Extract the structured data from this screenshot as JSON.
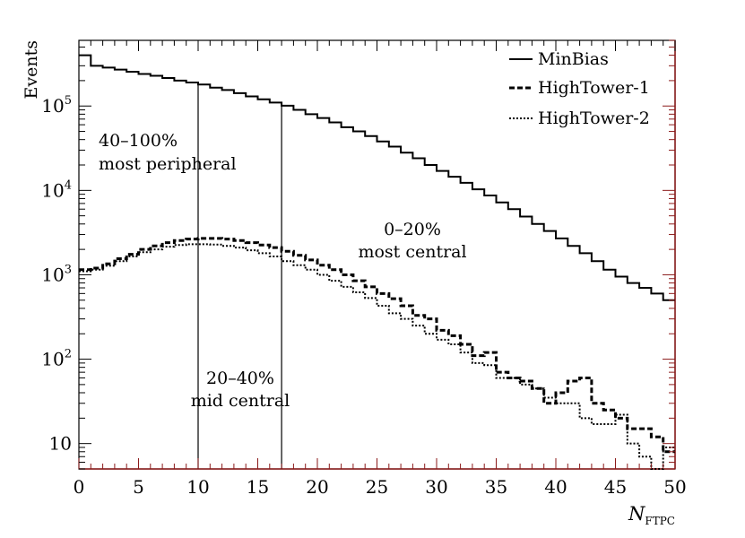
{
  "chart_data": {
    "type": "histogram",
    "title": "",
    "xlabel": "N",
    "xlabel_sub": "FTPC",
    "ylabel": "Events",
    "xlim": [
      0,
      50
    ],
    "ylim": [
      5,
      600000
    ],
    "yscale": "log",
    "bin_width": 1,
    "x_ticks": [
      "0",
      "5",
      "10",
      "15",
      "20",
      "25",
      "30",
      "35",
      "40",
      "45",
      "50"
    ],
    "y_ticks": [
      {
        "value": 10,
        "base": "10",
        "exp": ""
      },
      {
        "value": 100,
        "base": "10",
        "exp": "2"
      },
      {
        "value": 1000,
        "base": "10",
        "exp": "3"
      },
      {
        "value": 10000,
        "base": "10",
        "exp": "4"
      },
      {
        "value": 100000,
        "base": "10",
        "exp": "5"
      }
    ],
    "series": [
      {
        "name": "MinBias",
        "style": "solid",
        "values": [
          400000,
          300000,
          285000,
          270000,
          255000,
          240000,
          228000,
          215000,
          200000,
          190000,
          180000,
          165000,
          155000,
          142000,
          130000,
          120000,
          110000,
          101000,
          90000,
          80000,
          72000,
          64000,
          56000,
          50000,
          44000,
          38000,
          33000,
          28000,
          24000,
          20000,
          17000,
          14500,
          12300,
          10300,
          8700,
          7200,
          6000,
          4900,
          4000,
          3300,
          2700,
          2200,
          1800,
          1450,
          1150,
          950,
          800,
          700,
          600,
          500
        ]
      },
      {
        "name": "HighTower-1",
        "style": "dashed",
        "values": [
          1150,
          1200,
          1350,
          1550,
          1750,
          2000,
          2200,
          2400,
          2550,
          2650,
          2700,
          2700,
          2650,
          2550,
          2400,
          2250,
          2100,
          1900,
          1700,
          1500,
          1300,
          1150,
          1000,
          850,
          720,
          600,
          520,
          430,
          330,
          300,
          220,
          190,
          150,
          110,
          120,
          70,
          60,
          55,
          45,
          30,
          40,
          55,
          60,
          30,
          25,
          20,
          15,
          15,
          12,
          8
        ]
      },
      {
        "name": "HighTower-2",
        "style": "dotted",
        "values": [
          1100,
          1150,
          1280,
          1450,
          1650,
          1850,
          2000,
          2150,
          2250,
          2300,
          2300,
          2280,
          2200,
          2100,
          1950,
          1800,
          1650,
          1450,
          1300,
          1150,
          1000,
          850,
          720,
          620,
          530,
          430,
          350,
          300,
          250,
          200,
          170,
          150,
          120,
          90,
          85,
          60,
          60,
          50,
          45,
          35,
          30,
          30,
          20,
          17,
          17,
          22,
          10,
          7,
          5,
          9
        ]
      }
    ],
    "annotations": [
      {
        "id": "peripheral",
        "lines": [
          "40–100%",
          "most peripheral"
        ]
      },
      {
        "id": "mid",
        "lines": [
          "20–40%",
          "mid central"
        ]
      },
      {
        "id": "central",
        "lines": [
          "0–20%",
          "most central"
        ]
      }
    ],
    "vertical_lines": [
      10,
      17
    ],
    "legend_position": "top-right"
  }
}
